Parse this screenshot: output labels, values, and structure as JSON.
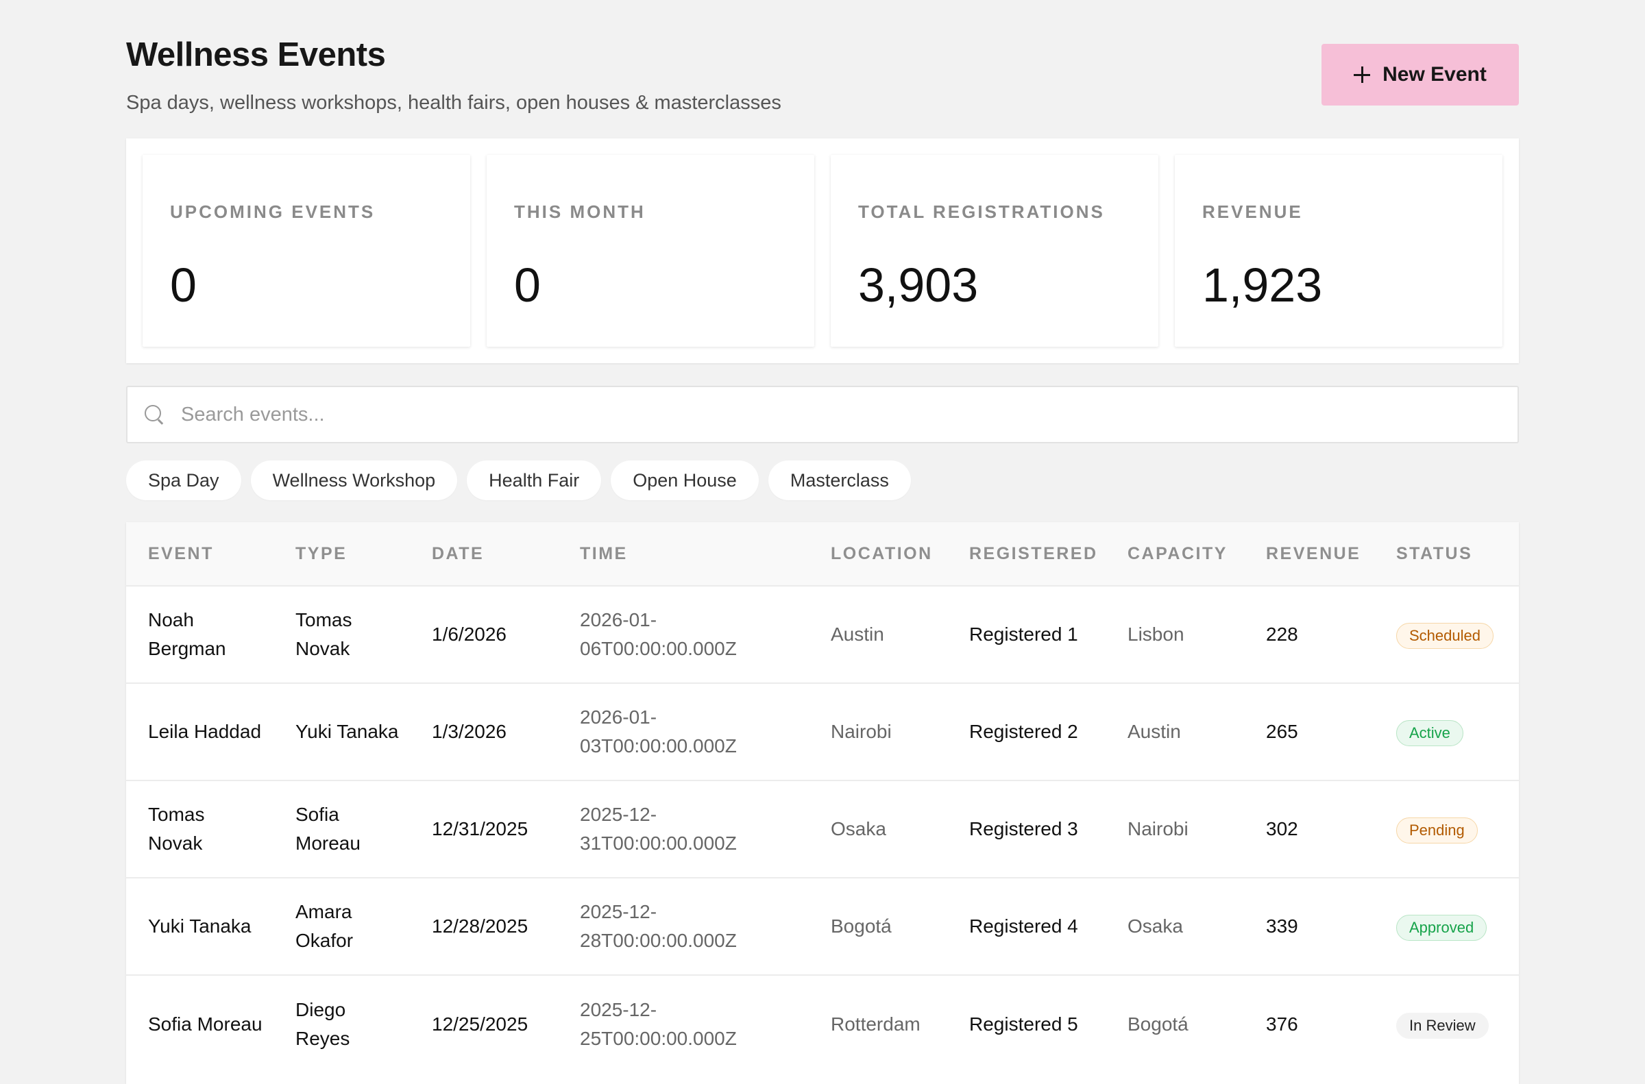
{
  "header": {
    "title": "Wellness Events",
    "subtitle": "Spa days, wellness workshops, health fairs, open houses & masterclasses",
    "new_event_label": "New Event"
  },
  "stats": [
    {
      "label": "UPCOMING EVENTS",
      "value": "0"
    },
    {
      "label": "THIS MONTH",
      "value": "0"
    },
    {
      "label": "TOTAL REGISTRATIONS",
      "value": "3,903"
    },
    {
      "label": "REVENUE",
      "value": "1,923"
    }
  ],
  "search": {
    "placeholder": "Search events...",
    "value": ""
  },
  "filters": [
    "Spa Day",
    "Wellness Workshop",
    "Health Fair",
    "Open House",
    "Masterclass"
  ],
  "table": {
    "columns": [
      "EVENT",
      "TYPE",
      "DATE",
      "TIME",
      "LOCATION",
      "REGISTERED",
      "CAPACITY",
      "REVENUE",
      "STATUS"
    ],
    "rows": [
      {
        "event": "Noah Bergman",
        "type": "Tomas Novak",
        "date": "1/6/2026",
        "time": "2026-01-06T00:00:00.000Z",
        "location": "Austin",
        "registered": "Registered 1",
        "capacity": "Lisbon",
        "revenue": "228",
        "status": "Scheduled"
      },
      {
        "event": "Leila Haddad",
        "type": "Yuki Tanaka",
        "date": "1/3/2026",
        "time": "2026-01-03T00:00:00.000Z",
        "location": "Nairobi",
        "registered": "Registered 2",
        "capacity": "Austin",
        "revenue": "265",
        "status": "Active"
      },
      {
        "event": "Tomas Novak",
        "type": "Sofia Moreau",
        "date": "12/31/2025",
        "time": "2025-12-31T00:00:00.000Z",
        "location": "Osaka",
        "registered": "Registered 3",
        "capacity": "Nairobi",
        "revenue": "302",
        "status": "Pending"
      },
      {
        "event": "Yuki Tanaka",
        "type": "Amara Okafor",
        "date": "12/28/2025",
        "time": "2025-12-28T00:00:00.000Z",
        "location": "Bogotá",
        "registered": "Registered 4",
        "capacity": "Osaka",
        "revenue": "339",
        "status": "Approved"
      },
      {
        "event": "Sofia Moreau",
        "type": "Diego Reyes",
        "date": "12/25/2025",
        "time": "2025-12-25T00:00:00.000Z",
        "location": "Rotterdam",
        "registered": "Registered 5",
        "capacity": "Bogotá",
        "revenue": "376",
        "status": "In Review"
      }
    ]
  },
  "colors": {
    "accent": "#f6bfd7",
    "background": "#f2f2f2",
    "status_warning": "#b25a00",
    "status_success": "#16a34a"
  },
  "icons": {
    "new_event": "plus-icon",
    "search": "search-icon"
  }
}
